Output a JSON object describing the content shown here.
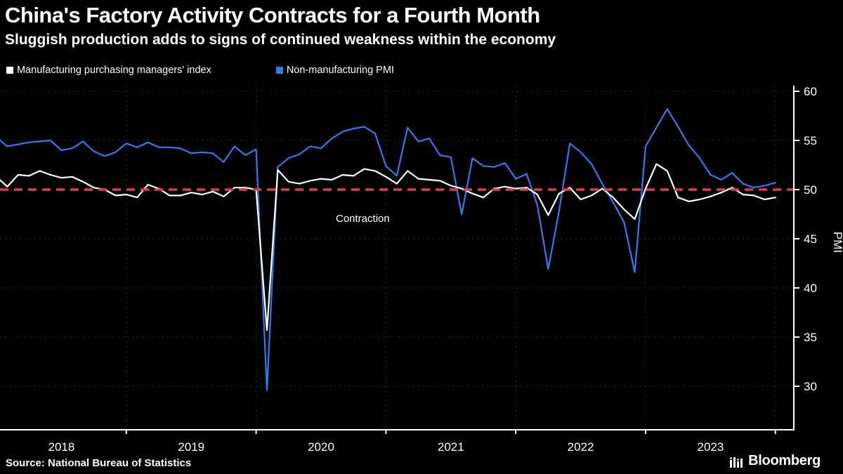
{
  "header": {
    "title": "China's Factory Activity Contracts for a Fourth Month",
    "subtitle": "Sluggish production adds to signs of continued weakness within the economy"
  },
  "legend": {
    "items": [
      {
        "label": "Manufacturing purchasing managers' index",
        "color": "#ffffff"
      },
      {
        "label": "Non-manufacturing PMI",
        "color": "#2f7bf2"
      }
    ]
  },
  "chart_data": {
    "type": "line",
    "title": "China's Factory Activity Contracts for a Fourth Month",
    "subtitle": "Sluggish production adds to signs of continued weakness within the economy",
    "xlabel": "",
    "ylabel": "PMI",
    "ylim": [
      28,
      61
    ],
    "yticks": [
      60,
      55,
      50,
      45,
      40,
      35,
      30
    ],
    "year_labels": [
      "2018",
      "2019",
      "2020",
      "2021",
      "2022",
      "2023"
    ],
    "grid": "faint dashed vertical lines at each January; faint dashed horizontal lines at y ticks",
    "legend_position": "top-left",
    "reference_line": {
      "value": 50,
      "color": "#e8364a",
      "style": "dashed",
      "label": "Contraction"
    },
    "months": [
      "2018-01",
      "2018-02",
      "2018-03",
      "2018-04",
      "2018-05",
      "2018-06",
      "2018-07",
      "2018-08",
      "2018-09",
      "2018-10",
      "2018-11",
      "2018-12",
      "2019-01",
      "2019-02",
      "2019-03",
      "2019-04",
      "2019-05",
      "2019-06",
      "2019-07",
      "2019-08",
      "2019-09",
      "2019-10",
      "2019-11",
      "2019-12",
      "2020-01",
      "2020-02",
      "2020-03",
      "2020-04",
      "2020-05",
      "2020-06",
      "2020-07",
      "2020-08",
      "2020-09",
      "2020-10",
      "2020-11",
      "2020-12",
      "2021-01",
      "2021-02",
      "2021-03",
      "2021-04",
      "2021-05",
      "2021-06",
      "2021-07",
      "2021-08",
      "2021-09",
      "2021-10",
      "2021-11",
      "2021-12",
      "2022-01",
      "2022-02",
      "2022-03",
      "2022-04",
      "2022-05",
      "2022-06",
      "2022-07",
      "2022-08",
      "2022-09",
      "2022-10",
      "2022-11",
      "2022-12",
      "2023-01",
      "2023-02",
      "2023-03",
      "2023-04",
      "2023-05",
      "2023-06",
      "2023-07",
      "2023-08",
      "2023-09",
      "2023-10",
      "2023-11",
      "2023-12",
      "2024-01"
    ],
    "series": [
      {
        "name": "Manufacturing purchasing managers' index",
        "color": "#ffffff",
        "values": [
          51.3,
          50.3,
          51.5,
          51.4,
          51.9,
          51.5,
          51.2,
          51.3,
          50.8,
          50.2,
          50.0,
          49.4,
          49.5,
          49.2,
          50.5,
          50.1,
          49.4,
          49.4,
          49.7,
          49.5,
          49.8,
          49.3,
          50.2,
          50.2,
          50.0,
          35.7,
          52.0,
          50.8,
          50.6,
          50.9,
          51.1,
          51.0,
          51.5,
          51.4,
          52.1,
          51.9,
          51.3,
          50.6,
          51.9,
          51.1,
          51.0,
          50.9,
          50.4,
          50.1,
          49.6,
          49.2,
          50.1,
          50.3,
          50.1,
          50.2,
          49.5,
          47.4,
          49.6,
          50.2,
          49.0,
          49.4,
          50.1,
          49.2,
          48.0,
          47.0,
          50.1,
          52.6,
          51.9,
          49.2,
          48.8,
          49.0,
          49.3,
          49.7,
          50.2,
          49.5,
          49.4,
          49.0,
          49.2
        ]
      },
      {
        "name": "Non-manufacturing PMI",
        "color": "#2f7bf2",
        "values": [
          55.3,
          54.4,
          54.6,
          54.8,
          54.9,
          55.0,
          54.0,
          54.2,
          54.9,
          53.9,
          53.4,
          53.8,
          54.7,
          54.3,
          54.8,
          54.3,
          54.3,
          54.2,
          53.7,
          53.8,
          53.7,
          52.8,
          54.4,
          53.5,
          54.1,
          29.6,
          52.3,
          53.2,
          53.6,
          54.4,
          54.2,
          55.2,
          55.9,
          56.2,
          56.4,
          55.7,
          52.4,
          51.4,
          56.3,
          54.9,
          55.2,
          53.5,
          53.3,
          47.5,
          53.2,
          52.4,
          52.3,
          52.7,
          51.1,
          51.6,
          48.4,
          41.9,
          47.8,
          54.7,
          53.8,
          52.6,
          50.6,
          48.7,
          46.7,
          41.6,
          54.4,
          56.3,
          58.2,
          56.4,
          54.5,
          53.2,
          51.5,
          51.0,
          51.7,
          50.6,
          50.2,
          50.4,
          50.7
        ]
      }
    ]
  },
  "footer": {
    "source": "Source: National Bureau of Statistics",
    "brand": "Bloomberg"
  },
  "colors": {
    "background": "#000000",
    "foreground": "#ffffff",
    "axis": "#ffffff",
    "grid": "#2e2e2e",
    "line_manufacturing": "#ffffff",
    "line_non_manufacturing": "#2f7bf2",
    "reference_red": "#e8364a"
  }
}
